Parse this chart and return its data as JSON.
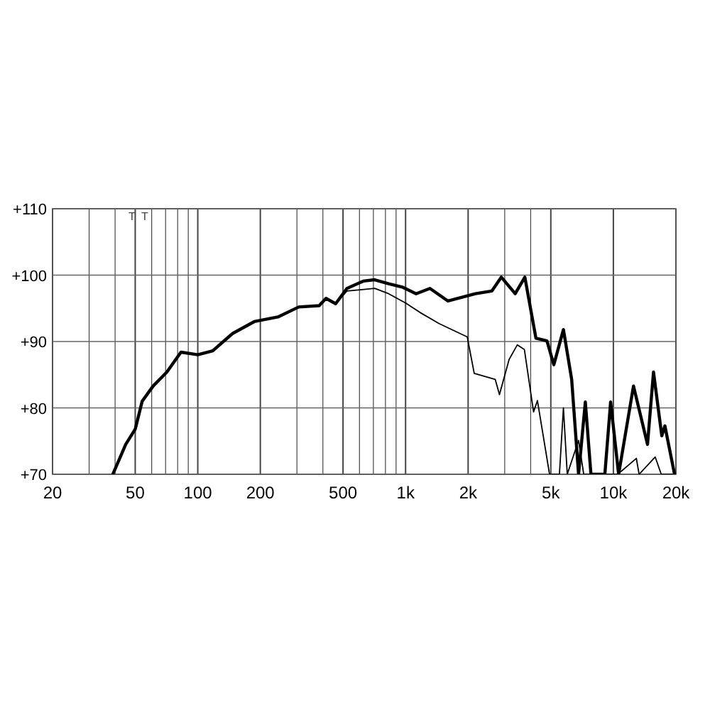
{
  "chart_data": {
    "type": "line",
    "log": "x",
    "grid": true,
    "xlim": [
      20,
      20000
    ],
    "ylim": [
      70,
      110
    ],
    "xticks": [
      20,
      {
        "value": 30,
        "label": null
      },
      {
        "value": 40,
        "label": null
      },
      50,
      {
        "value": 60,
        "label": null
      },
      {
        "value": 70,
        "label": null
      },
      {
        "value": 80,
        "label": null
      },
      {
        "value": 90,
        "label": null
      },
      100,
      200,
      {
        "value": 300,
        "label": null
      },
      {
        "value": 400,
        "label": null
      },
      500,
      {
        "value": 600,
        "label": null
      },
      {
        "value": 700,
        "label": null
      },
      {
        "value": 800,
        "label": null
      },
      {
        "value": 900,
        "label": null
      },
      {
        "value": 1000,
        "label": "1k"
      },
      {
        "value": 2000,
        "label": "2k"
      },
      {
        "value": 3000,
        "label": null
      },
      {
        "value": 4000,
        "label": null
      },
      {
        "value": 5000,
        "label": "5k"
      },
      {
        "value": 10000,
        "label": "10k"
      },
      {
        "value": 20000,
        "label": "20k"
      }
    ],
    "yticks": [
      {
        "value": 70,
        "label": "+70"
      },
      {
        "value": 80,
        "label": "+80"
      },
      {
        "value": 90,
        "label": "+90"
      },
      {
        "value": 100,
        "label": "+100"
      },
      {
        "value": 110,
        "label": "+110"
      }
    ],
    "annotations": [
      "T",
      "T"
    ],
    "series": [
      {
        "color": "#000000",
        "x": [
          39,
          45,
          50,
          54,
          61,
          71,
          83,
          100,
          118,
          147,
          187,
          243,
          306,
          384,
          414,
          461,
          522,
          626,
          710,
          829,
          964,
          1124,
          1310,
          1600,
          2170,
          2600,
          2890,
          3370,
          3750,
          4240,
          4790,
          5170,
          5750,
          6300,
          6800,
          7330,
          7800,
          9100,
          9700,
          10600,
          12500,
          14600,
          15600,
          17100,
          17700,
          19700
        ],
        "values": [
          70,
          74.5,
          76.8,
          81,
          83.3,
          85.4,
          88.4,
          88,
          88.6,
          91.2,
          93,
          93.7,
          95.2,
          95.4,
          96.5,
          95.7,
          98,
          99.1,
          99.3,
          98.7,
          98.2,
          97.2,
          98,
          96.1,
          97.2,
          97.6,
          99.7,
          97.2,
          99.7,
          90.5,
          90.1,
          86.5,
          91.8,
          84.3,
          70,
          80.9,
          70,
          70,
          80.9,
          70,
          83.3,
          74.5,
          85.4,
          75.8,
          77.3,
          70
        ]
      },
      {
        "color": "#000000",
        "x": [
          461,
          522,
          710,
          829,
          1000,
          1170,
          1450,
          1980,
          2140,
          2700,
          2830,
          3150,
          3450,
          3730,
          4130,
          4310,
          4930,
          5500,
          5750,
          6000,
          6800,
          7200,
          10500,
          12900,
          13300,
          15900,
          17000,
          19700
        ],
        "values": [
          95.7,
          97.6,
          98,
          97.2,
          95.8,
          94.4,
          92.7,
          90.7,
          85.2,
          84.3,
          82,
          87.3,
          89.5,
          88.8,
          79.4,
          81.1,
          70,
          70,
          80,
          70,
          75.1,
          70,
          70,
          72.4,
          70,
          72.6,
          70,
          70
        ]
      }
    ]
  }
}
